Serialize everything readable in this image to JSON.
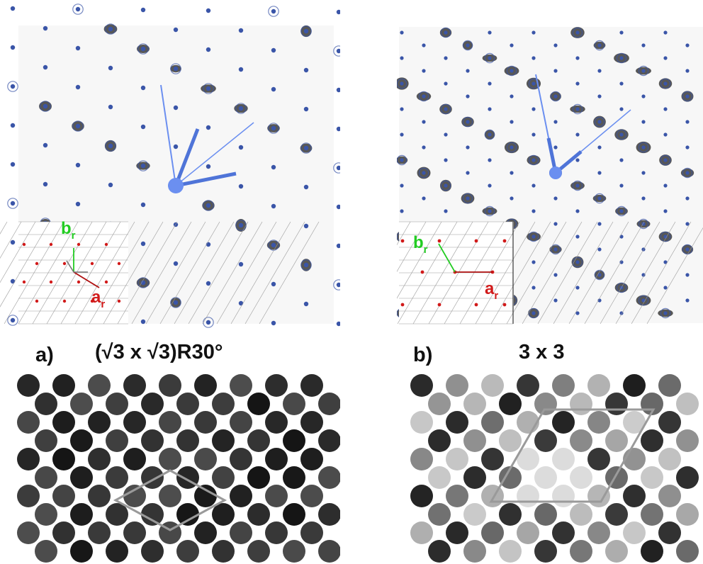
{
  "figure": {
    "panel_a": {
      "letter": "a)",
      "title": "(√3 x √3)R30°",
      "inset_vector_a": {
        "main": "a",
        "sub": "r"
      },
      "inset_vector_b": {
        "main": "b",
        "sub": "r"
      }
    },
    "panel_b": {
      "letter": "b)",
      "title": "3 x 3",
      "inset_vector_a": {
        "main": "a",
        "sub": "r"
      },
      "inset_vector_b": {
        "main": "b",
        "sub": "r"
      }
    }
  },
  "colors": {
    "spot_blue": "#3a55a8",
    "vector_blue": "#4f74d8",
    "vector_light": "#6b8ff0",
    "cell_outline": "#9a9a9a",
    "inset_red": "#d11a1a",
    "inset_green": "#22cc22"
  }
}
